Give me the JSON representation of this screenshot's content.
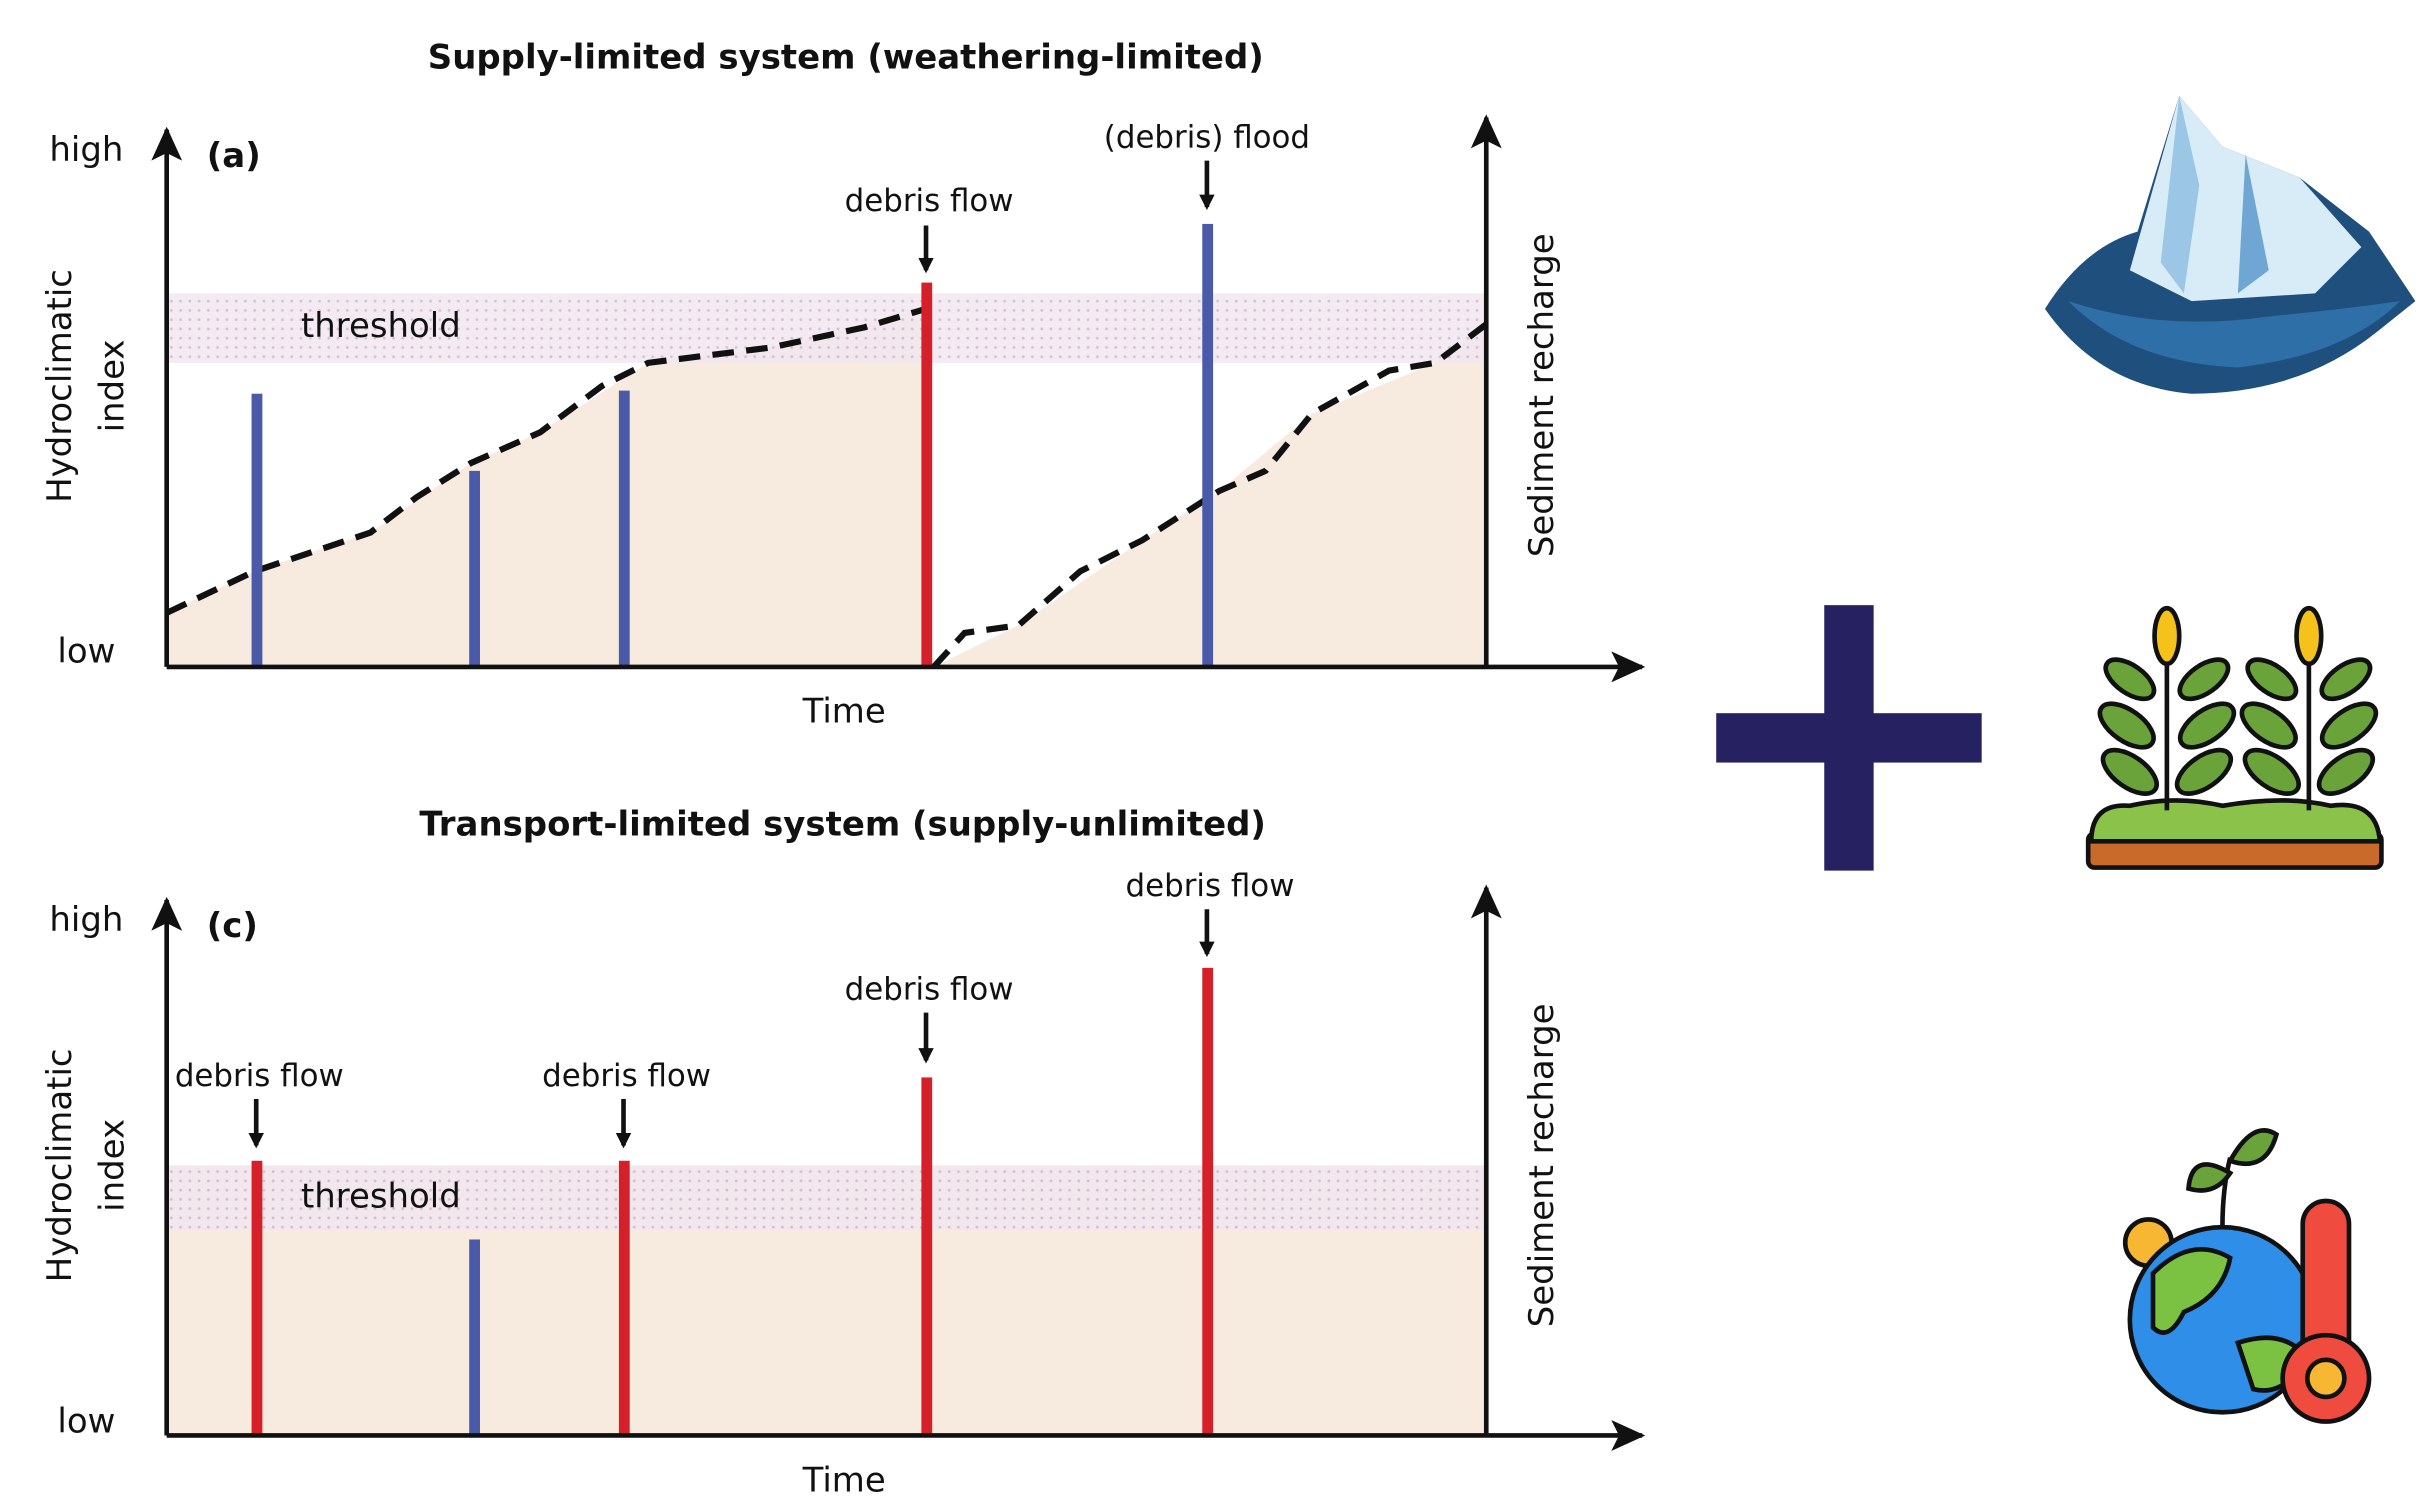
{
  "panels": [
    {
      "title": "Supply-limited system (weathering-limited)",
      "label": "(a)",
      "y_high": "high",
      "y_low": "low",
      "y_label_1": "Hydroclimatic",
      "y_label_2": "index",
      "x_label": "Time",
      "right_label": "Sediment recharge",
      "threshold": "threshold",
      "annotations": [
        "debris flow",
        "(debris) flood"
      ]
    },
    {
      "title": "Transport-limited system (supply-unlimited)",
      "label": "(c)",
      "y_high": "high",
      "y_low": "low",
      "y_label_1": "Hydroclimatic",
      "y_label_2": "index",
      "x_label": "Time",
      "right_label": "Sediment recharge",
      "threshold": "threshold",
      "annotations": [
        "debris flow",
        "debris flow",
        "debris flow",
        "debris flow"
      ]
    }
  ]
}
